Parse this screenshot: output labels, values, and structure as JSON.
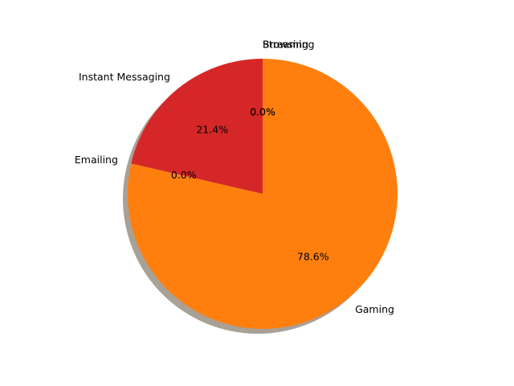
{
  "chart_data": {
    "type": "pie",
    "title": "",
    "labels": [
      "Browsing",
      "Streaming",
      "Instant Messaging",
      "Emailing",
      "Gaming"
    ],
    "values": [
      0.0,
      0.0,
      21.4,
      0.0,
      78.6
    ],
    "percent_labels": [
      "0.0%",
      "0.0%",
      "21.4%",
      "0.0%",
      "78.6%"
    ],
    "colors": [
      "#1f77b4",
      "#2ca02c",
      "#d62728",
      "#9467bd",
      "#ff7f0e"
    ],
    "start_angle_deg": 90,
    "direction": "counterclockwise",
    "shadow": true,
    "legend": "none"
  }
}
